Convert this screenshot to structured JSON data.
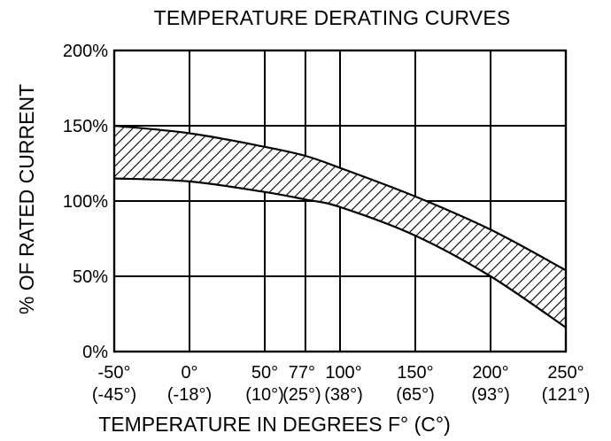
{
  "chart_data": {
    "type": "area",
    "title": "TEMPERATURE DERATING CURVES",
    "xlabel": "TEMPERATURE IN DEGREES F° (C°)",
    "ylabel": "% OF RATED CURRENT",
    "xlim": [
      -50,
      250
    ],
    "ylim": [
      0,
      200
    ],
    "x_ticks": [
      {
        "value": -50,
        "f": "-50°",
        "c": "(-45°)"
      },
      {
        "value": 0,
        "f": "0°",
        "c": "(-18°)"
      },
      {
        "value": 50,
        "f": "50°",
        "c": "(10°)"
      },
      {
        "value": 77,
        "f": "77°",
        "c": "(25°)"
      },
      {
        "value": 100,
        "f": "100°",
        "c": "(38°)"
      },
      {
        "value": 150,
        "f": "150°",
        "c": "(65°)"
      },
      {
        "value": 200,
        "f": "200°",
        "c": "(93°)"
      },
      {
        "value": 250,
        "f": "250°",
        "c": "(121°)"
      }
    ],
    "y_ticks": [
      {
        "value": 0,
        "label": "0%"
      },
      {
        "value": 50,
        "label": "50%"
      },
      {
        "value": 100,
        "label": "100%"
      },
      {
        "value": 150,
        "label": "150%"
      },
      {
        "value": 200,
        "label": "200%"
      }
    ],
    "grid": true,
    "band_fill": "diagonal-hatch",
    "series": [
      {
        "x": [
          -50,
          0,
          50,
          77,
          100,
          150,
          200,
          250
        ],
        "values": [
          150,
          145,
          136,
          130,
          122,
          103,
          81,
          54
        ]
      },
      {
        "x": [
          -50,
          0,
          50,
          77,
          100,
          150,
          200,
          250
        ],
        "values": [
          115,
          113,
          106,
          101,
          96,
          77,
          50,
          16
        ]
      }
    ]
  }
}
